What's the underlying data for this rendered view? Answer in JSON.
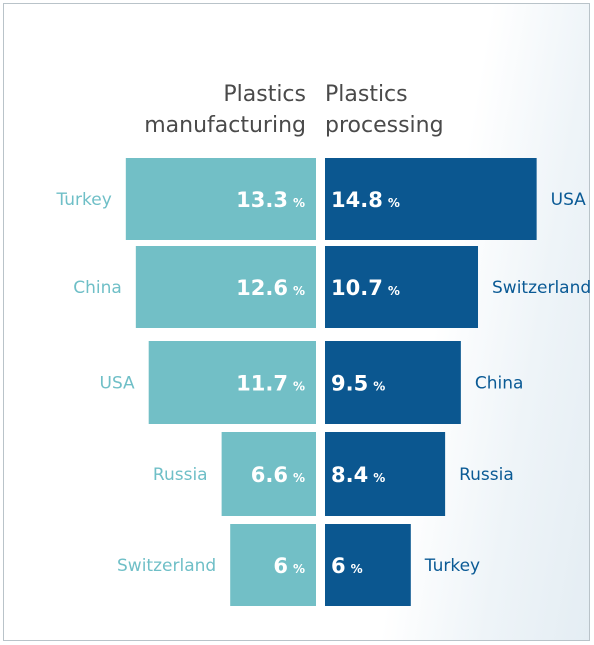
{
  "chart_data": [
    {
      "type": "bar",
      "orientation": "horizontal",
      "direction": "right-to-left",
      "title_lines": [
        "Plastics",
        "manufacturing"
      ],
      "categories": [
        "Turkey",
        "China",
        "USA",
        "Russia",
        "Switzerland"
      ],
      "values": [
        13.3,
        12.6,
        11.7,
        6.6,
        6
      ],
      "unit": "%",
      "color": "#72bfc6",
      "label_color": "#6fbfc7"
    },
    {
      "type": "bar",
      "orientation": "horizontal",
      "direction": "left-to-right",
      "title_lines": [
        "Plastics",
        "processing"
      ],
      "categories": [
        "USA",
        "Switzerland",
        "China",
        "Russia",
        "Turkey"
      ],
      "values": [
        14.8,
        10.7,
        9.5,
        8.4,
        6
      ],
      "unit": "%",
      "color": "#0b5790",
      "label_color": "#0a5a95"
    }
  ]
}
